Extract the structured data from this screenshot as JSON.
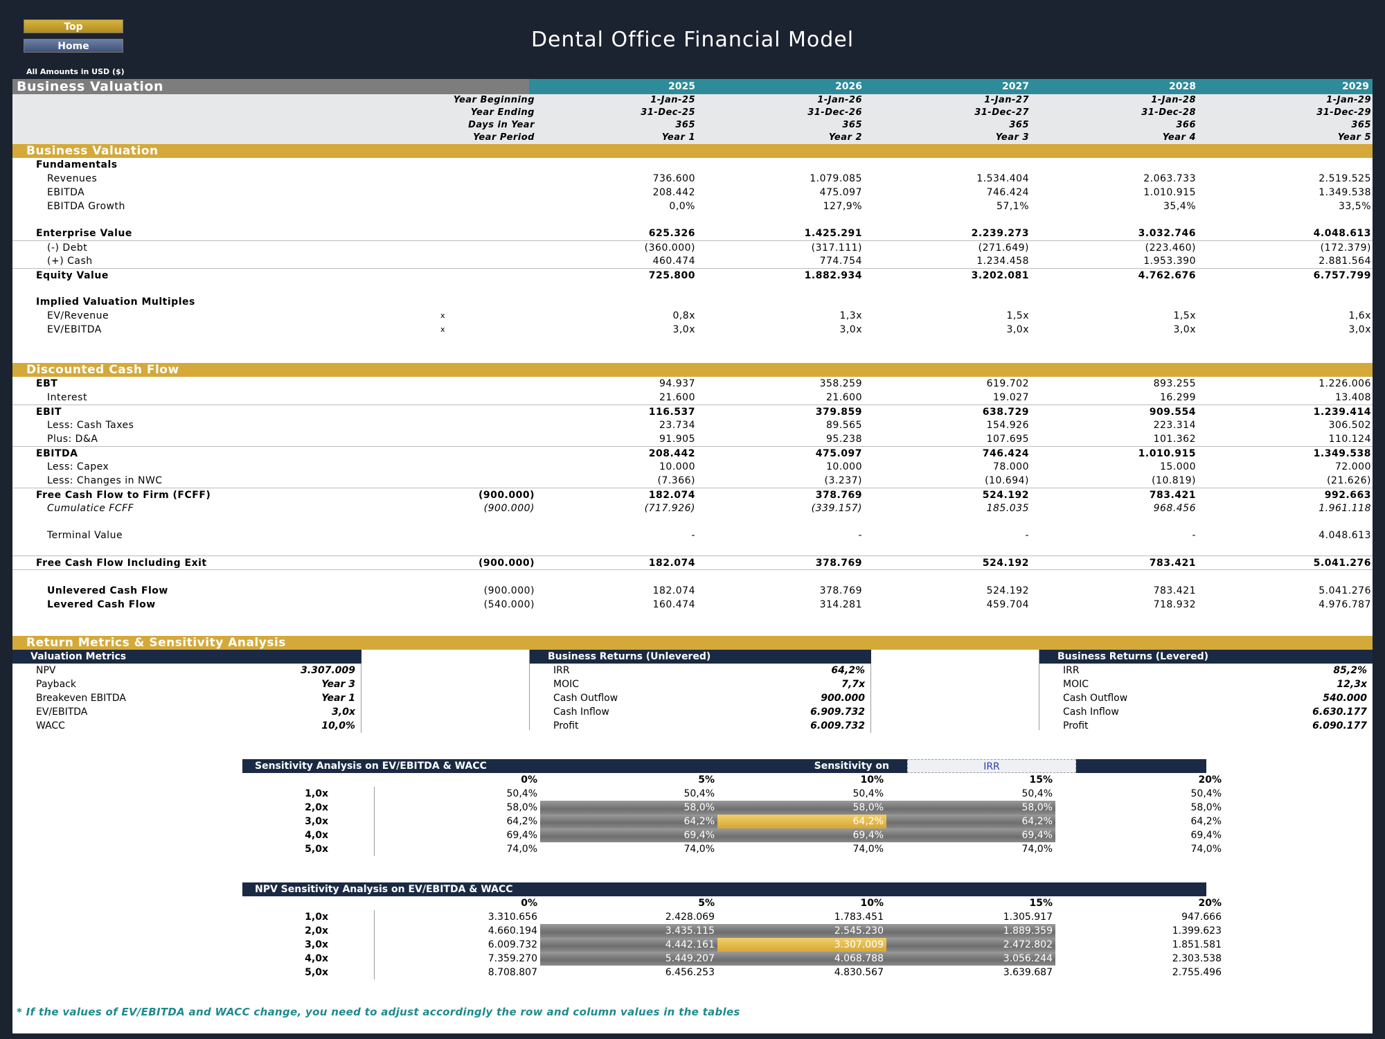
{
  "nav": {
    "top_label": "Top",
    "home_label": "Home"
  },
  "title": "Dental Office Financial Model",
  "amounts_note": "All Amounts in  USD ($)",
  "valuation_header": {
    "label": "Business Valuation",
    "years": [
      "2025",
      "2026",
      "2027",
      "2028",
      "2029"
    ]
  },
  "periods": {
    "year_beginning": {
      "label": "Year Beginning",
      "values": [
        "1-Jan-25",
        "1-Jan-26",
        "1-Jan-27",
        "1-Jan-28",
        "1-Jan-29"
      ]
    },
    "year_ending": {
      "label": "Year Ending",
      "values": [
        "31-Dec-25",
        "31-Dec-26",
        "31-Dec-27",
        "31-Dec-28",
        "31-Dec-29"
      ]
    },
    "days": {
      "label": "Days in Year",
      "values": [
        "365",
        "365",
        "365",
        "366",
        "365"
      ]
    },
    "year_period": {
      "label": "Year Period",
      "values": [
        "Year 1",
        "Year 2",
        "Year 3",
        "Year 4",
        "Year 5"
      ]
    }
  },
  "bv_section": {
    "title": "Business Valuation",
    "fundamentals": "Fundamentals",
    "revenues": {
      "label": "Revenues",
      "values": [
        "736.600",
        "1.079.085",
        "1.534.404",
        "2.063.733",
        "2.519.525"
      ]
    },
    "ebitda": {
      "label": "EBITDA",
      "values": [
        "208.442",
        "475.097",
        "746.424",
        "1.010.915",
        "1.349.538"
      ]
    },
    "ebitda_growth": {
      "label": "EBITDA Growth",
      "values": [
        "0,0%",
        "127,9%",
        "57,1%",
        "35,4%",
        "33,5%"
      ]
    },
    "enterprise_value": {
      "label": "Enterprise Value",
      "values": [
        "625.326",
        "1.425.291",
        "2.239.273",
        "3.032.746",
        "4.048.613"
      ]
    },
    "debt": {
      "label": "(-) Debt",
      "values": [
        "(360.000)",
        "(317.111)",
        "(271.649)",
        "(223.460)",
        "(172.379)"
      ]
    },
    "cash": {
      "label": "(+) Cash",
      "values": [
        "460.474",
        "774.754",
        "1.234.458",
        "1.953.390",
        "2.881.564"
      ]
    },
    "equity_value": {
      "label": "Equity Value",
      "values": [
        "725.800",
        "1.882.934",
        "3.202.081",
        "4.762.676",
        "6.757.799"
      ]
    },
    "multiples_title": "Implied Valuation Multiples",
    "ev_revenue": {
      "label": "EV/Revenue",
      "unit": "x",
      "values": [
        "0,8x",
        "1,3x",
        "1,5x",
        "1,5x",
        "1,6x"
      ]
    },
    "ev_ebitda": {
      "label": "EV/EBITDA",
      "unit": "x",
      "values": [
        "3,0x",
        "3,0x",
        "3,0x",
        "3,0x",
        "3,0x"
      ]
    }
  },
  "dcf": {
    "title": "Discounted Cash Flow",
    "ebt": {
      "label": "EBT",
      "values": [
        "94.937",
        "358.259",
        "619.702",
        "893.255",
        "1.226.006"
      ]
    },
    "interest": {
      "label": "Interest",
      "values": [
        "21.600",
        "21.600",
        "19.027",
        "16.299",
        "13.408"
      ]
    },
    "ebit": {
      "label": "EBIT",
      "values": [
        "116.537",
        "379.859",
        "638.729",
        "909.554",
        "1.239.414"
      ]
    },
    "taxes": {
      "label": "Less: Cash Taxes",
      "values": [
        "23.734",
        "89.565",
        "154.926",
        "223.314",
        "306.502"
      ]
    },
    "da": {
      "label": "Plus: D&A",
      "values": [
        "91.905",
        "95.238",
        "107.695",
        "101.362",
        "110.124"
      ]
    },
    "ebitda": {
      "label": "EBITDA",
      "values": [
        "208.442",
        "475.097",
        "746.424",
        "1.010.915",
        "1.349.538"
      ]
    },
    "capex": {
      "label": "Less: Capex",
      "values": [
        "10.000",
        "10.000",
        "78.000",
        "15.000",
        "72.000"
      ]
    },
    "nwc": {
      "label": "Less: Changes in NWC",
      "values": [
        "(7.366)",
        "(3.237)",
        "(10.694)",
        "(10.819)",
        "(21.626)"
      ]
    },
    "fcff": {
      "label": "Free Cash Flow to Firm (FCFF)",
      "initial": "(900.000)",
      "values": [
        "182.074",
        "378.769",
        "524.192",
        "783.421",
        "992.663"
      ]
    },
    "cum_fcff": {
      "label": "Cumulatice FCFF",
      "initial": "(900.000)",
      "values": [
        "(717.926)",
        "(339.157)",
        "185.035",
        "968.456",
        "1.961.118"
      ]
    },
    "terminal": {
      "label": "Terminal Value",
      "values": [
        "-",
        "-",
        "-",
        "-",
        "4.048.613"
      ]
    },
    "fcf_exit": {
      "label": "Free Cash Flow Including Exit",
      "initial": "(900.000)",
      "values": [
        "182.074",
        "378.769",
        "524.192",
        "783.421",
        "5.041.276"
      ]
    },
    "unlevered": {
      "label": "Unlevered Cash Flow",
      "initial": "(900.000)",
      "values": [
        "182.074",
        "378.769",
        "524.192",
        "783.421",
        "5.041.276"
      ]
    },
    "levered": {
      "label": "Levered Cash Flow",
      "initial": "(540.000)",
      "values": [
        "160.474",
        "314.281",
        "459.704",
        "718.932",
        "4.976.787"
      ]
    }
  },
  "returns": {
    "title": "Return Metrics & Sensitivity Analysis",
    "valuation_metrics": {
      "title": "Valuation Metrics",
      "rows": [
        {
          "k": "NPV",
          "v": "3.307.009"
        },
        {
          "k": "Payback",
          "v": "Year 3"
        },
        {
          "k": "Breakeven EBITDA",
          "v": "Year 1"
        },
        {
          "k": "EV/EBITDA",
          "v": "3,0x"
        },
        {
          "k": "WACC",
          "v": "10,0%"
        }
      ]
    },
    "unlevered": {
      "title": "Business Returns (Unlevered)",
      "rows": [
        {
          "k": "IRR",
          "v": "64,2%"
        },
        {
          "k": "MOIC",
          "v": "7,7x"
        },
        {
          "k": "Cash Outflow",
          "v": "900.000"
        },
        {
          "k": "Cash Inflow",
          "v": "6.909.732"
        },
        {
          "k": "Profit",
          "v": "6.009.732"
        }
      ]
    },
    "levered": {
      "title": "Business Returns (Levered)",
      "rows": [
        {
          "k": "IRR",
          "v": "85,2%"
        },
        {
          "k": "MOIC",
          "v": "12,3x"
        },
        {
          "k": "Cash Outflow",
          "v": "540.000"
        },
        {
          "k": "Cash Inflow",
          "v": "6.630.177"
        },
        {
          "k": "Profit",
          "v": "6.090.177"
        }
      ]
    }
  },
  "sens_irr": {
    "title": "Sensitivity Analysis on EV/EBITDA & WACC",
    "sensitivity_on_label": "Sensitivity on",
    "sensitivity_on_value": "IRR",
    "cols": [
      "0%",
      "5%",
      "10%",
      "15%",
      "20%"
    ],
    "rows": [
      {
        "label": "1,0x",
        "values": [
          "50,4%",
          "50,4%",
          "50,4%",
          "50,4%",
          "50,4%"
        ]
      },
      {
        "label": "2,0x",
        "values": [
          "58,0%",
          "58,0%",
          "58,0%",
          "58,0%",
          "58,0%"
        ]
      },
      {
        "label": "3,0x",
        "values": [
          "64,2%",
          "64,2%",
          "64,2%",
          "64,2%",
          "64,2%"
        ]
      },
      {
        "label": "4,0x",
        "values": [
          "69,4%",
          "69,4%",
          "69,4%",
          "69,4%",
          "69,4%"
        ]
      },
      {
        "label": "5,0x",
        "values": [
          "74,0%",
          "74,0%",
          "74,0%",
          "74,0%",
          "74,0%"
        ]
      }
    ]
  },
  "sens_npv": {
    "title": "NPV Sensitivity Analysis on EV/EBITDA & WACC",
    "cols": [
      "0%",
      "5%",
      "10%",
      "15%",
      "20%"
    ],
    "rows": [
      {
        "label": "1,0x",
        "values": [
          "3.310.656",
          "2.428.069",
          "1.783.451",
          "1.305.917",
          "947.666"
        ]
      },
      {
        "label": "2,0x",
        "values": [
          "4.660.194",
          "3.435.115",
          "2.545.230",
          "1.889.359",
          "1.399.623"
        ]
      },
      {
        "label": "3,0x",
        "values": [
          "6.009.732",
          "4.442.161",
          "3.307.009",
          "2.472.802",
          "1.851.581"
        ]
      },
      {
        "label": "4,0x",
        "values": [
          "7.359.270",
          "5.449.207",
          "4.068.788",
          "3.056.244",
          "2.303.538"
        ]
      },
      {
        "label": "5,0x",
        "values": [
          "8.708.807",
          "6.456.253",
          "4.830.567",
          "3.639.687",
          "2.755.496"
        ]
      }
    ]
  },
  "footnote": "* If the values of EV/EBITDA and WACC change, you need to adjust accordingly the row and column values in the tables",
  "colors": {
    "navy": "#1b2a44",
    "gold": "#d4a93a",
    "teal": "#2d8b9a",
    "grey_band": "#7d7d7d",
    "footnote": "#1e8a8f"
  }
}
